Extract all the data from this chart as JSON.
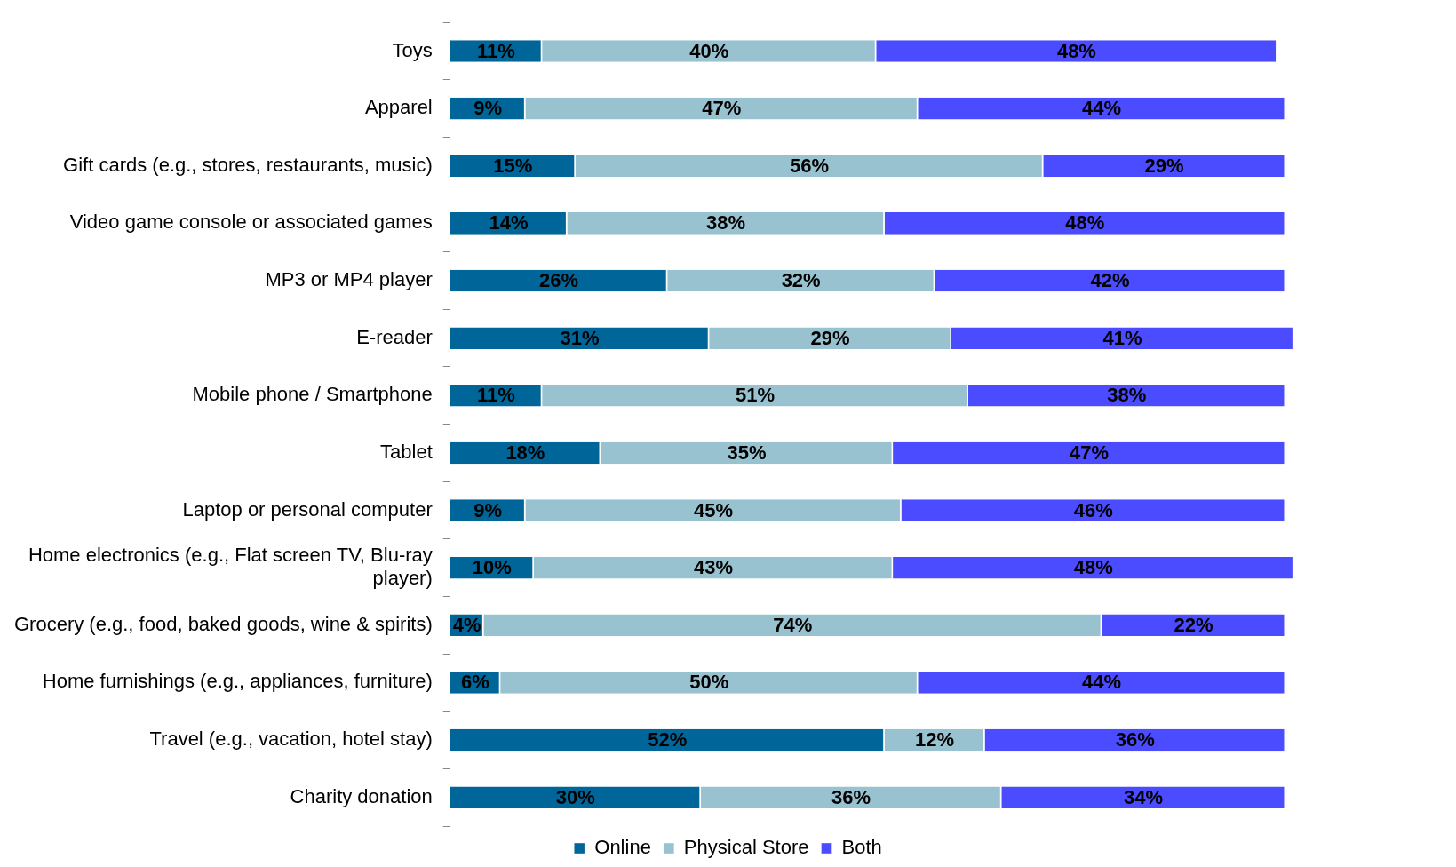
{
  "chart_data": {
    "type": "bar",
    "orientation": "horizontal",
    "stacked": true,
    "legend": "bottom",
    "categories": [
      "Toys",
      "Apparel",
      "Gift cards (e.g., stores, restaurants, music)",
      "Video game console or associated games",
      "MP3 or MP4 player",
      "E-reader",
      "Mobile phone / Smartphone",
      "Tablet",
      "Laptop or personal computer",
      "Home electronics (e.g., Flat screen TV, Blu-ray player)",
      "Grocery (e.g., food, baked goods, wine & spirits)",
      "Home furnishings (e.g., appliances, furniture)",
      "Travel (e.g., vacation, hotel stay)",
      "Charity donation"
    ],
    "series": [
      {
        "name": "Online",
        "color": "#006699",
        "values": [
          11,
          9,
          15,
          14,
          26,
          31,
          11,
          18,
          9,
          10,
          4,
          6,
          52,
          30
        ],
        "value_labels": [
          "11%",
          "9%",
          "15%",
          "14%",
          "26%",
          "31%",
          "11%",
          "18%",
          "9%",
          "10%",
          "4%",
          "6%",
          "52%",
          "30%"
        ]
      },
      {
        "name": "Physical Store",
        "color": "#99c2d0",
        "values": [
          40,
          47,
          56,
          38,
          32,
          29,
          51,
          35,
          45,
          43,
          74,
          50,
          12,
          36
        ],
        "value_labels": [
          "40%",
          "47%",
          "56%",
          "38%",
          "32%",
          "29%",
          "51%",
          "35%",
          "45%",
          "43%",
          "74%",
          "50%",
          "12%",
          "36%"
        ]
      },
      {
        "name": "Both",
        "color": "#4b4bff",
        "values": [
          48,
          44,
          29,
          48,
          42,
          41,
          38,
          47,
          46,
          48,
          22,
          44,
          36,
          34
        ],
        "value_labels": [
          "48%",
          "44%",
          "29%",
          "48%",
          "42%",
          "41%",
          "38%",
          "47%",
          "46%",
          "48%",
          "22%",
          "44%",
          "36%",
          "34%"
        ]
      }
    ]
  }
}
